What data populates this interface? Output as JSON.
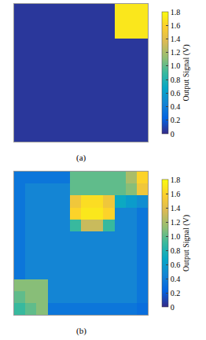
{
  "chart_data": [
    {
      "type": "heatmap",
      "title": "(a)",
      "tick_labels": false,
      "x": [
        0,
        1,
        2,
        3,
        4,
        5,
        6,
        7,
        8,
        9,
        10,
        11
      ],
      "y": [
        0,
        1,
        2,
        3,
        4,
        5,
        6,
        7,
        8,
        9,
        10,
        11
      ],
      "xlim": [
        -0.5,
        11.5
      ],
      "ylim": [
        11.5,
        -0.5
      ],
      "z": [
        [
          0.05,
          0.05,
          0.05,
          0.05,
          0.05,
          0.05,
          0.05,
          0.05,
          0.05,
          1.7,
          1.7,
          1.7
        ],
        [
          0.05,
          0.05,
          0.05,
          0.05,
          0.05,
          0.05,
          0.05,
          0.05,
          0.05,
          1.7,
          1.7,
          1.7
        ],
        [
          0.05,
          0.05,
          0.05,
          0.05,
          0.05,
          0.05,
          0.05,
          0.05,
          0.05,
          1.7,
          1.7,
          1.7
        ],
        [
          0.05,
          0.05,
          0.05,
          0.05,
          0.05,
          0.05,
          0.05,
          0.05,
          0.05,
          0.05,
          0.05,
          0.05
        ],
        [
          0.05,
          0.05,
          0.05,
          0.05,
          0.05,
          0.05,
          0.05,
          0.05,
          0.05,
          0.05,
          0.05,
          0.05
        ],
        [
          0.05,
          0.05,
          0.05,
          0.05,
          0.05,
          0.05,
          0.05,
          0.05,
          0.05,
          0.05,
          0.05,
          0.05
        ],
        [
          0.05,
          0.05,
          0.05,
          0.05,
          0.05,
          0.05,
          0.05,
          0.05,
          0.05,
          0.05,
          0.05,
          0.05
        ],
        [
          0.05,
          0.05,
          0.05,
          0.05,
          0.05,
          0.05,
          0.05,
          0.05,
          0.05,
          0.05,
          0.05,
          0.05
        ],
        [
          0.05,
          0.05,
          0.05,
          0.05,
          0.05,
          0.05,
          0.05,
          0.05,
          0.05,
          0.05,
          0.05,
          0.05
        ],
        [
          0.05,
          0.05,
          0.05,
          0.05,
          0.05,
          0.05,
          0.05,
          0.05,
          0.05,
          0.05,
          0.05,
          0.05
        ],
        [
          0.05,
          0.05,
          0.05,
          0.05,
          0.05,
          0.05,
          0.05,
          0.05,
          0.05,
          0.05,
          0.05,
          0.05
        ],
        [
          0.05,
          0.05,
          0.05,
          0.05,
          0.05,
          0.05,
          0.05,
          0.05,
          0.05,
          0.05,
          0.05,
          0.05
        ]
      ],
      "colorbar": {
        "title": "Output Signal (V)",
        "range": [
          0,
          1.8
        ],
        "ticks": [
          0,
          0.2,
          0.4,
          0.6,
          0.8,
          {
            "value": 1,
            "label": "1.0"
          },
          1.2,
          1.4,
          1.6,
          1.8
        ]
      }
    },
    {
      "type": "heatmap",
      "title": "(b)",
      "tick_labels": false,
      "x": [
        0,
        1,
        2,
        3,
        4,
        5,
        6,
        7,
        8,
        9,
        10,
        11
      ],
      "y": [
        0,
        1,
        2,
        3,
        4,
        5,
        6,
        7,
        8,
        9,
        10,
        11
      ],
      "xlim": [
        -0.5,
        11.5
      ],
      "ylim": [
        11.5,
        -0.5
      ],
      "z": [
        [
          0.35,
          0.35,
          0.35,
          0.35,
          0.35,
          1.0,
          1.0,
          1.0,
          1.0,
          1.0,
          1.2,
          1.6
        ],
        [
          0.35,
          0.45,
          0.45,
          0.45,
          0.45,
          1.0,
          1.0,
          1.0,
          1.0,
          1.0,
          1.1,
          1.5
        ],
        [
          0.35,
          0.45,
          0.45,
          0.45,
          0.45,
          1.5,
          1.65,
          1.65,
          1.5,
          0.7,
          0.6,
          0.5
        ],
        [
          0.35,
          0.45,
          0.45,
          0.45,
          0.45,
          1.6,
          1.7,
          1.7,
          1.6,
          0.45,
          0.45,
          0.35
        ],
        [
          0.35,
          0.45,
          0.45,
          0.45,
          0.45,
          0.9,
          1.3,
          1.3,
          0.9,
          0.45,
          0.45,
          0.35
        ],
        [
          0.35,
          0.45,
          0.45,
          0.45,
          0.45,
          0.45,
          0.45,
          0.45,
          0.45,
          0.45,
          0.45,
          0.35
        ],
        [
          0.35,
          0.45,
          0.45,
          0.45,
          0.45,
          0.45,
          0.45,
          0.45,
          0.45,
          0.45,
          0.45,
          0.35
        ],
        [
          0.35,
          0.45,
          0.45,
          0.45,
          0.45,
          0.45,
          0.45,
          0.45,
          0.45,
          0.45,
          0.45,
          0.35
        ],
        [
          0.35,
          0.45,
          0.45,
          0.45,
          0.45,
          0.45,
          0.45,
          0.45,
          0.45,
          0.45,
          0.45,
          0.35
        ],
        [
          1.1,
          1.1,
          1.1,
          0.45,
          0.45,
          0.45,
          0.45,
          0.45,
          0.45,
          0.45,
          0.45,
          0.35
        ],
        [
          1.0,
          1.1,
          1.1,
          0.45,
          0.45,
          0.45,
          0.45,
          0.45,
          0.45,
          0.45,
          0.45,
          0.35
        ],
        [
          0.9,
          1.0,
          1.1,
          0.35,
          0.35,
          0.35,
          0.35,
          0.35,
          0.35,
          0.35,
          0.35,
          0.3
        ]
      ],
      "colorbar": {
        "title": "Output Signal (V)",
        "range": [
          0,
          1.8
        ],
        "ticks": [
          0,
          0.2,
          0.4,
          0.6,
          0.8,
          {
            "value": 1,
            "label": "1.0"
          },
          1.2,
          1.4,
          1.6,
          1.8
        ]
      }
    }
  ]
}
